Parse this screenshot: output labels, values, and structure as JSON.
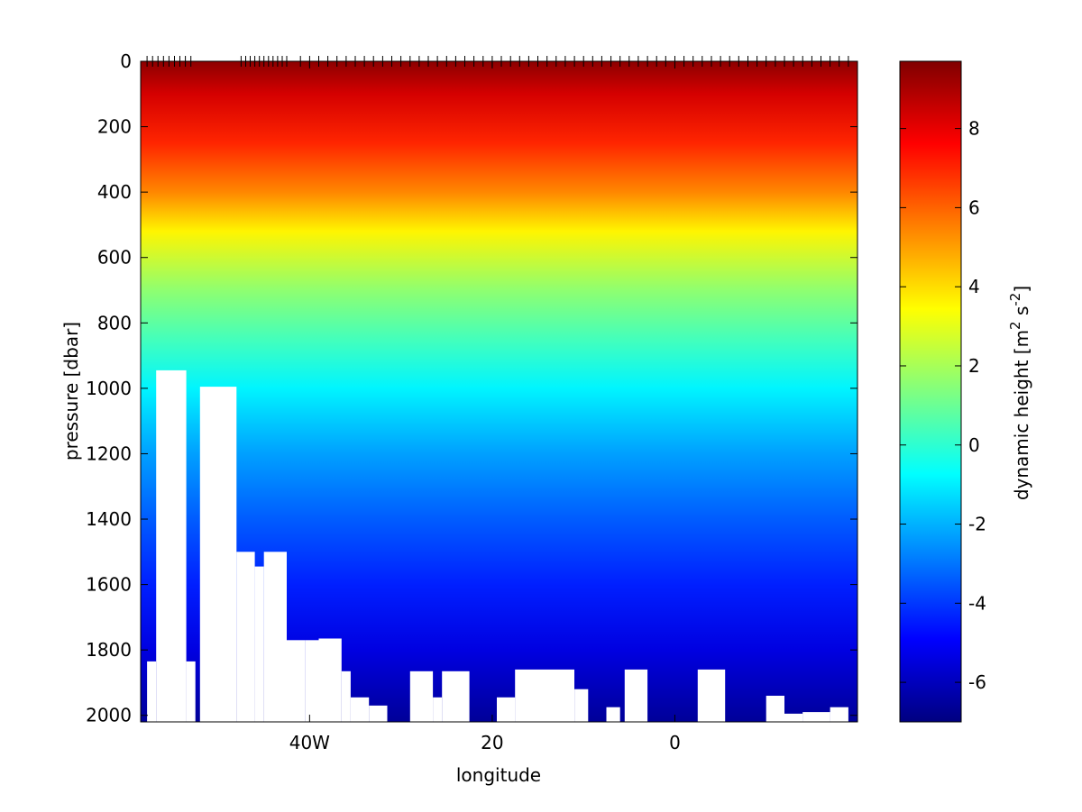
{
  "chart_data": {
    "type": "heatmap",
    "title": "",
    "xlabel": "longitude",
    "ylabel": "pressure [dbar]",
    "colorbar_label": "dynamic height [m",
    "colorbar_unit_sup1": "2",
    "colorbar_unit_mid": " s",
    "colorbar_unit_sup2": "-2",
    "colorbar_unit_end": "]",
    "xlim": [
      -58.5,
      20
    ],
    "ylim": [
      0,
      2020
    ],
    "y_reversed": true,
    "clim": [
      -7,
      9.7
    ],
    "colormap": "jet",
    "x_ticks": [
      {
        "value": -40,
        "label": "40W"
      },
      {
        "value": -20,
        "label": "20"
      },
      {
        "value": 0,
        "label": "0"
      }
    ],
    "y_ticks": [
      {
        "value": 0,
        "label": "0"
      },
      {
        "value": 200,
        "label": "200"
      },
      {
        "value": 400,
        "label": "400"
      },
      {
        "value": 600,
        "label": "600"
      },
      {
        "value": 800,
        "label": "800"
      },
      {
        "value": 1000,
        "label": "1000"
      },
      {
        "value": 1200,
        "label": "1200"
      },
      {
        "value": 1400,
        "label": "1400"
      },
      {
        "value": 1600,
        "label": "1600"
      },
      {
        "value": 1800,
        "label": "1800"
      },
      {
        "value": 2000,
        "label": "2000"
      }
    ],
    "colorbar_ticks": [
      {
        "value": 8,
        "label": "8"
      },
      {
        "value": 6,
        "label": "6"
      },
      {
        "value": 4,
        "label": "4"
      },
      {
        "value": 2,
        "label": "2"
      },
      {
        "value": 0,
        "label": "0"
      },
      {
        "value": -2,
        "label": "-2"
      },
      {
        "value": -4,
        "label": "-4"
      },
      {
        "value": -6,
        "label": "-6"
      }
    ],
    "field_profile": [
      {
        "p": 0,
        "value": 9.5
      },
      {
        "p": 100,
        "value": 8.3
      },
      {
        "p": 250,
        "value": 7.0
      },
      {
        "p": 400,
        "value": 5.4
      },
      {
        "p": 520,
        "value": 3.6
      },
      {
        "p": 700,
        "value": 1.6
      },
      {
        "p": 860,
        "value": 0.3
      },
      {
        "p": 1000,
        "value": -0.9
      },
      {
        "p": 1200,
        "value": -2.3
      },
      {
        "p": 1400,
        "value": -3.4
      },
      {
        "p": 1600,
        "value": -4.4
      },
      {
        "p": 1800,
        "value": -5.4
      },
      {
        "p": 2020,
        "value": -6.6
      }
    ],
    "station_longitudes": [
      -57.8,
      -57.2,
      -56.6,
      -56.0,
      -55.4,
      -54.8,
      -54.2,
      -53.6,
      -53.0,
      -47.5,
      -47.0,
      -46.5,
      -46.0,
      -45.5,
      -45.0,
      -44.5,
      -44.0,
      -43.5,
      -43.0,
      -42.5,
      -41.0,
      -40.0,
      -39.0,
      -38.0,
      -37.0,
      -36.0,
      -35.0,
      -34.0,
      -33.0,
      -32.0,
      -31.0,
      -30.0,
      -29.0,
      -28.0,
      -27.0,
      -26.0,
      -25.0,
      -24.0,
      -23.0,
      -22.0,
      -21.0,
      -20.0,
      -19.0,
      -18.0,
      -17.0,
      -16.0,
      -15.0,
      -14.0,
      -13.0,
      -12.0,
      -11.0,
      -10.0,
      -9.0,
      -8.0,
      -7.0,
      -6.0,
      -5.0,
      -4.0,
      -3.0,
      -2.0,
      -1.0,
      0.0,
      1.0,
      2.0,
      3.0,
      4.0,
      5.0,
      6.0,
      7.0,
      8.0,
      9.0,
      10.0,
      11.0,
      12.0,
      13.0,
      14.0,
      15.0,
      16.0,
      17.0,
      18.0,
      19.0
    ],
    "bottom_mask": [
      {
        "x0": -57.8,
        "x1": -56.8,
        "depth": 1835
      },
      {
        "x0": -56.8,
        "x1": -53.5,
        "depth": 945
      },
      {
        "x0": -53.5,
        "x1": -52.5,
        "depth": 1835
      },
      {
        "x0": -52.0,
        "x1": -48.0,
        "depth": 995
      },
      {
        "x0": -48.0,
        "x1": -46.0,
        "depth": 1500
      },
      {
        "x0": -46.0,
        "x1": -45.0,
        "depth": 1545
      },
      {
        "x0": -45.0,
        "x1": -42.5,
        "depth": 1500
      },
      {
        "x0": -42.5,
        "x1": -40.5,
        "depth": 1770
      },
      {
        "x0": -40.5,
        "x1": -39.0,
        "depth": 1770
      },
      {
        "x0": -39.0,
        "x1": -36.5,
        "depth": 1765
      },
      {
        "x0": -36.5,
        "x1": -35.5,
        "depth": 1865
      },
      {
        "x0": -35.5,
        "x1": -33.5,
        "depth": 1945
      },
      {
        "x0": -33.5,
        "x1": -31.5,
        "depth": 1970
      },
      {
        "x0": -29.0,
        "x1": -26.5,
        "depth": 1865
      },
      {
        "x0": -26.5,
        "x1": -25.5,
        "depth": 1945
      },
      {
        "x0": -25.5,
        "x1": -22.5,
        "depth": 1865
      },
      {
        "x0": -19.5,
        "x1": -17.5,
        "depth": 1945
      },
      {
        "x0": -17.5,
        "x1": -11.0,
        "depth": 1860
      },
      {
        "x0": -11.0,
        "x1": -9.5,
        "depth": 1920
      },
      {
        "x0": -7.5,
        "x1": -6.0,
        "depth": 1975
      },
      {
        "x0": -5.5,
        "x1": -3.0,
        "depth": 1860
      },
      {
        "x0": 2.5,
        "x1": 5.5,
        "depth": 1860
      },
      {
        "x0": 10.0,
        "x1": 12.0,
        "depth": 1940
      },
      {
        "x0": 12.0,
        "x1": 14.0,
        "depth": 1995
      },
      {
        "x0": 14.0,
        "x1": 17.0,
        "depth": 1990
      },
      {
        "x0": 17.0,
        "x1": 19.0,
        "depth": 1975
      }
    ]
  }
}
